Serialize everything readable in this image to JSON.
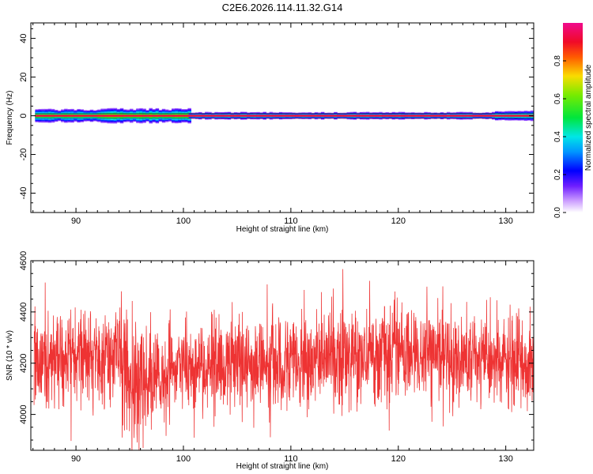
{
  "title": "C2E6.2026.114.11.32.G14",
  "chart_data": [
    {
      "type": "heatmap",
      "xlabel": "Height of straight line (km)",
      "ylabel": "Frequency (Hz)",
      "xlim": [
        85.8,
        132.6
      ],
      "ylim": [
        -50,
        48
      ],
      "x_ticks": [
        90,
        100,
        110,
        120,
        130
      ],
      "y_ticks": [
        -40,
        -20,
        0,
        20,
        40
      ],
      "colorbar": {
        "label": "Normalized spectral amplitude",
        "range": [
          0,
          1
        ],
        "ticks": [
          "0.0",
          "0.2",
          "0.4",
          "0.6",
          "0.8"
        ],
        "tick_values": [
          0.0,
          0.2,
          0.4,
          0.6,
          0.8
        ]
      },
      "bands": [
        {
          "x_start": 86.2,
          "x_end": 92,
          "halfwidth_hz": 3.2,
          "peak": 1.0,
          "shoulder": 0.5
        },
        {
          "x_start": 92,
          "x_end": 100.5,
          "halfwidth_hz": 3.5,
          "peak": 1.0,
          "shoulder": 0.55
        },
        {
          "x_start": 100.5,
          "x_end": 129,
          "halfwidth_hz": 1.8,
          "peak": 1.0,
          "shoulder": 0.35
        },
        {
          "x_start": 129,
          "x_end": 132.6,
          "halfwidth_hz": 2.5,
          "peak": 1.0,
          "shoulder": 0.4
        }
      ]
    },
    {
      "type": "line",
      "xlabel": "Height of straight line (km)",
      "ylabel": "SNR (10 * v/v)",
      "xlim": [
        85.8,
        132.6
      ],
      "ylim": [
        3860,
        4600
      ],
      "x_ticks": [
        90,
        100,
        110,
        120,
        130
      ],
      "y_ticks": [
        4000,
        4200,
        4400,
        4600
      ],
      "series": [
        {
          "color": "#ee3333",
          "mean": 4200,
          "noise_sd": 90,
          "samples": 2200,
          "anchors": [
            {
              "x": 86,
              "mean": 4200
            },
            {
              "x": 94,
              "mean": 4230
            },
            {
              "x": 95.5,
              "mean": 4120
            },
            {
              "x": 100,
              "mean": 4180
            },
            {
              "x": 110,
              "mean": 4210
            },
            {
              "x": 120,
              "mean": 4240
            },
            {
              "x": 132.6,
              "mean": 4190
            }
          ]
        }
      ]
    }
  ]
}
